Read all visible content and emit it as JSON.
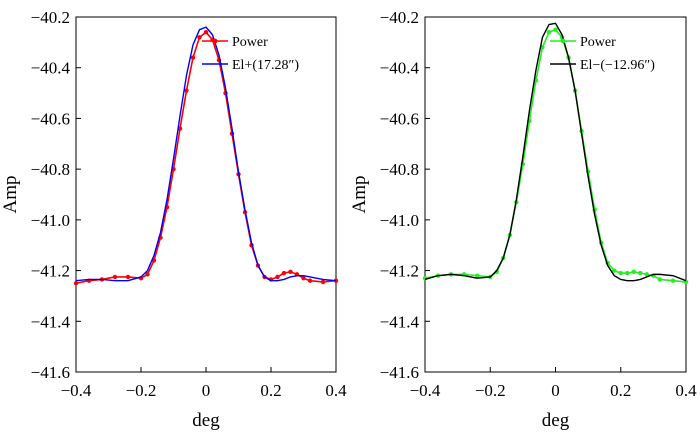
{
  "chart_data": [
    {
      "type": "line",
      "xlabel": "deg",
      "ylabel": "Amp",
      "xlim": [
        -0.4,
        0.4
      ],
      "ylim": [
        -41.6,
        -40.2
      ],
      "xticks": [
        -0.4,
        -0.2,
        0,
        0.2,
        0.4
      ],
      "xtick_labels": [
        "−0.4",
        "−0.2",
        "0",
        "0.2",
        "0.4"
      ],
      "yticks": [
        -40.2,
        -40.4,
        -40.6,
        -40.8,
        -41.0,
        -41.2,
        -41.4,
        -41.6
      ],
      "ytick_labels": [
        "−40.2",
        "−40.4",
        "−40.6",
        "−40.8",
        "−41.0",
        "−41.2",
        "−41.4",
        "−41.6"
      ],
      "legend_position": "top-right",
      "series": [
        {
          "name": "Power",
          "color": "#ff0000",
          "marker": "dot",
          "x": [
            -0.4,
            -0.36,
            -0.32,
            -0.28,
            -0.24,
            -0.2,
            -0.18,
            -0.16,
            -0.14,
            -0.12,
            -0.1,
            -0.08,
            -0.06,
            -0.04,
            -0.02,
            0.0,
            0.02,
            0.04,
            0.06,
            0.08,
            0.1,
            0.12,
            0.14,
            0.16,
            0.18,
            0.2,
            0.22,
            0.24,
            0.26,
            0.28,
            0.3,
            0.32,
            0.36,
            0.4
          ],
          "y": [
            -41.25,
            -41.24,
            -41.235,
            -41.225,
            -41.225,
            -41.23,
            -41.215,
            -41.16,
            -41.07,
            -40.95,
            -40.8,
            -40.64,
            -40.49,
            -40.36,
            -40.28,
            -40.26,
            -40.29,
            -40.37,
            -40.5,
            -40.66,
            -40.82,
            -40.97,
            -41.1,
            -41.18,
            -41.225,
            -41.235,
            -41.225,
            -41.21,
            -41.205,
            -41.215,
            -41.23,
            -41.24,
            -41.245,
            -41.24
          ]
        },
        {
          "name": "El+(17.28″)",
          "color": "#0000ff",
          "marker": "none",
          "x": [
            -0.4,
            -0.36,
            -0.32,
            -0.28,
            -0.24,
            -0.2,
            -0.18,
            -0.16,
            -0.14,
            -0.12,
            -0.1,
            -0.08,
            -0.06,
            -0.04,
            -0.02,
            0.0,
            0.02,
            0.04,
            0.06,
            0.08,
            0.1,
            0.12,
            0.14,
            0.16,
            0.18,
            0.2,
            0.22,
            0.24,
            0.26,
            0.28,
            0.3,
            0.32,
            0.36,
            0.4
          ],
          "y": [
            -41.24,
            -41.235,
            -41.235,
            -41.24,
            -41.24,
            -41.225,
            -41.2,
            -41.14,
            -41.05,
            -40.92,
            -40.76,
            -40.59,
            -40.43,
            -40.31,
            -40.25,
            -40.24,
            -40.27,
            -40.35,
            -40.48,
            -40.64,
            -40.81,
            -40.96,
            -41.09,
            -41.18,
            -41.225,
            -41.24,
            -41.24,
            -41.235,
            -41.225,
            -41.22,
            -41.22,
            -41.225,
            -41.235,
            -41.24
          ]
        }
      ]
    },
    {
      "type": "line",
      "xlabel": "deg",
      "ylabel": "Amp",
      "xlim": [
        -0.4,
        0.4
      ],
      "ylim": [
        -41.6,
        -40.2
      ],
      "xticks": [
        -0.4,
        -0.2,
        0,
        0.2,
        0.4
      ],
      "xtick_labels": [
        "−0.4",
        "−0.2",
        "0",
        "0.2",
        "0.4"
      ],
      "yticks": [
        -40.2,
        -40.4,
        -40.6,
        -40.8,
        -41.0,
        -41.2,
        -41.4,
        -41.6
      ],
      "ytick_labels": [
        "−40.2",
        "−40.4",
        "−40.6",
        "−40.8",
        "−41.0",
        "−41.2",
        "−41.4",
        "−41.6"
      ],
      "legend_position": "top-right",
      "series": [
        {
          "name": "Power",
          "color": "#22ee22",
          "marker": "dot",
          "x": [
            -0.4,
            -0.36,
            -0.32,
            -0.28,
            -0.24,
            -0.2,
            -0.18,
            -0.16,
            -0.14,
            -0.12,
            -0.1,
            -0.08,
            -0.06,
            -0.04,
            -0.02,
            0.0,
            0.02,
            0.04,
            0.06,
            0.08,
            0.1,
            0.12,
            0.14,
            0.16,
            0.18,
            0.2,
            0.22,
            0.24,
            0.26,
            0.28,
            0.3,
            0.32,
            0.36,
            0.4
          ],
          "y": [
            -41.23,
            -41.22,
            -41.215,
            -41.215,
            -41.22,
            -41.225,
            -41.205,
            -41.15,
            -41.06,
            -40.93,
            -40.78,
            -40.61,
            -40.45,
            -40.32,
            -40.26,
            -40.25,
            -40.28,
            -40.36,
            -40.49,
            -40.65,
            -40.81,
            -40.96,
            -41.09,
            -41.17,
            -41.2,
            -41.21,
            -41.21,
            -41.205,
            -41.21,
            -41.215,
            -41.22,
            -41.235,
            -41.24,
            -41.245
          ]
        },
        {
          "name": "El−(−12.96″)",
          "color": "#000000",
          "marker": "none",
          "x": [
            -0.4,
            -0.36,
            -0.32,
            -0.28,
            -0.24,
            -0.2,
            -0.18,
            -0.16,
            -0.14,
            -0.12,
            -0.1,
            -0.08,
            -0.06,
            -0.04,
            -0.02,
            0.0,
            0.02,
            0.04,
            0.06,
            0.08,
            0.1,
            0.12,
            0.14,
            0.16,
            0.18,
            0.2,
            0.22,
            0.24,
            0.26,
            0.28,
            0.3,
            0.32,
            0.36,
            0.4
          ],
          "y": [
            -41.235,
            -41.22,
            -41.215,
            -41.22,
            -41.23,
            -41.225,
            -41.2,
            -41.15,
            -41.06,
            -40.92,
            -40.75,
            -40.57,
            -40.41,
            -40.28,
            -40.23,
            -40.225,
            -40.27,
            -40.36,
            -40.49,
            -40.66,
            -40.83,
            -40.98,
            -41.1,
            -41.18,
            -41.22,
            -41.235,
            -41.24,
            -41.24,
            -41.235,
            -41.225,
            -41.215,
            -41.215,
            -41.22,
            -41.24
          ]
        }
      ]
    }
  ]
}
